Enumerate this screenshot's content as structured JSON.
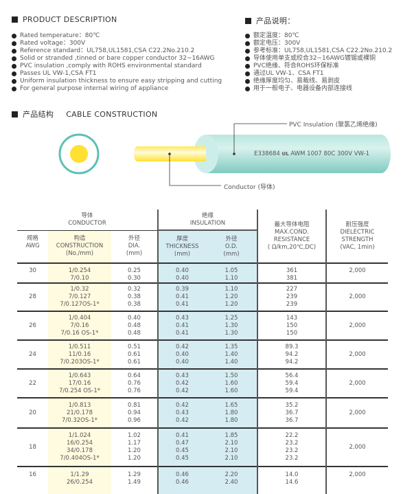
{
  "desc_en": {
    "title": "PRODUCT DESCRIPTION",
    "items": [
      "Rated temperature：80℃",
      "Rated voltage：300V",
      "Reference standard：UL758,UL1581,CSA C22.2No.210.2",
      "Solid or stranded ,tinned or bare copper conductor 32~16AWG",
      "PVC insulation ,comply with ROHS environmental standard",
      "Passes UL VW-1,CSA FT1",
      "Uniform insulation thickness to ensure easy stripping and cutting",
      "For general purpose internal wiring of appliance"
    ]
  },
  "desc_cn": {
    "title": "产品说明：",
    "items": [
      "额定温度：80℃",
      "额定电压：300V",
      "参考标准：UL758,UL1581,CSA C22.2No.210.2",
      "导体使用单支或绞合32~16AWG镀锡或裸铜",
      "PVC绝缘、符合ROHS环保标准",
      "通过UL VW-1、CSA FT1",
      "绝缘厚度均匀、易裁线、易剥皮",
      "用于一般电子、电器设备内部连接线"
    ]
  },
  "construction": {
    "title_cn": "产品结构",
    "title_en": "CABLE CONSTRUCTION",
    "insulation_label": "PVC Insulation (聚氯乙烯绝缘)",
    "conductor_label": "Conductor (导体)",
    "print_text": "E338684",
    "ul_mark": "UL",
    "print_text2": "AWM 1007 80C 300V VW-1",
    "colors": {
      "insulation": "#8fd3c9",
      "conductor": "#ffe033"
    }
  },
  "table": {
    "header": {
      "conductor_cn": "导体",
      "conductor_en": "CONDUCTOR",
      "insulation_cn": "绝缘",
      "insulation_en": "INSULATION",
      "awg_cn": "规格",
      "awg_en": "AWG",
      "cons_cn": "构造",
      "cons_en": "CONSTRUCTION",
      "cons_unit": "(No./mm)",
      "dia_cn": "外径",
      "dia_en": "DIA.",
      "dia_unit": "(mm)",
      "thk_cn": "厚度",
      "thk_en": "THICKNESS",
      "thk_unit": "(mm)",
      "od_cn": "外径",
      "od_en": "O.D.",
      "od_unit": "(mm)",
      "res_cn": "最大导体电阻",
      "res_en1": "MAX.COND.",
      "res_en2": "RESISTANCE",
      "res_unit": "( Ω/km,20℃,DC)",
      "die_cn": "耐压强度",
      "die_en1": "DIELECTRIC",
      "die_en2": "STRENGTH",
      "die_unit": "(VAC, 1min)"
    },
    "rows": [
      {
        "awg": "30",
        "cons": [
          "1/0.254",
          "7/0.10"
        ],
        "dia": [
          "0.25",
          "0.30"
        ],
        "thk": [
          "0.40",
          "0.40"
        ],
        "od": [
          "1.05",
          "1.10"
        ],
        "res": [
          "361",
          "381"
        ],
        "die": "2,000"
      },
      {
        "awg": "28",
        "cons": [
          "1/0.32",
          "7/0.127",
          "7/0.127OS-1*"
        ],
        "dia": [
          "0.32",
          "0.38",
          "0.38"
        ],
        "thk": [
          "0.39",
          "0.41",
          "0.41"
        ],
        "od": [
          "1.10",
          "1.20",
          "1.20"
        ],
        "res": [
          "227",
          "239",
          "239"
        ],
        "die": "2,000"
      },
      {
        "awg": "26",
        "cons": [
          "1/0.404",
          "7/0.16",
          "7/0.16 OS-1*"
        ],
        "dia": [
          "0.40",
          "0.48",
          "0.48"
        ],
        "thk": [
          "0.43",
          "0.41",
          "0.41"
        ],
        "od": [
          "1.25",
          "1.30",
          "1.30"
        ],
        "res": [
          "143",
          "150",
          "150"
        ],
        "die": "2,000"
      },
      {
        "awg": "24",
        "cons": [
          "1/0.511",
          "11/0.16",
          "7/0.203OS-1*"
        ],
        "dia": [
          "0.51",
          "0.61",
          "0.61"
        ],
        "thk": [
          "0.42",
          "0.40",
          "0.40"
        ],
        "od": [
          "1.35",
          "1.40",
          "1.40"
        ],
        "res": [
          "89.3",
          "94.2",
          "94.2"
        ],
        "die": "2,000"
      },
      {
        "awg": "22",
        "cons": [
          "1/0.643",
          "17/0.16",
          "7/0.254 OS-1*"
        ],
        "dia": [
          "0.64",
          "0.76",
          "0.76"
        ],
        "thk": [
          "0.43",
          "0.42",
          "0.42"
        ],
        "od": [
          "1.50",
          "1.60",
          "1.60"
        ],
        "res": [
          "56.4",
          "59.4",
          "59.4"
        ],
        "die": "2,000"
      },
      {
        "awg": "20",
        "cons": [
          "1/0.813",
          "21/0.178",
          "7/0.32OS-1*"
        ],
        "dia": [
          "0.81",
          "0.94",
          "0.96"
        ],
        "thk": [
          "0.42",
          "0.43",
          "0.42"
        ],
        "od": [
          "1.65",
          "1.80",
          "1.80"
        ],
        "res": [
          "35.2",
          "36.7",
          "36.7"
        ],
        "die": "2,000"
      },
      {
        "awg": "18",
        "cons": [
          "1/1.024",
          "16/0.254",
          "34/0.178",
          "7/0.404OS-1*"
        ],
        "dia": [
          "1.02",
          "1.17",
          "1.20",
          "1.20"
        ],
        "thk": [
          "0.41",
          "0.47",
          "0.45",
          "0.45"
        ],
        "od": [
          "1.85",
          "2.10",
          "2.10",
          "2.10"
        ],
        "res": [
          "22.2",
          "23.2",
          "23.2",
          "23.2"
        ],
        "die": "2,000"
      },
      {
        "awg": "16",
        "cons": [
          "1/1.29",
          "26/0.254"
        ],
        "dia": [
          "1.29",
          "1.49"
        ],
        "thk": [
          "0.46",
          "0.46"
        ],
        "od": [
          "2.20",
          "2.40"
        ],
        "res": [
          "14.0",
          "14.6"
        ],
        "die": "2,000"
      }
    ]
  }
}
